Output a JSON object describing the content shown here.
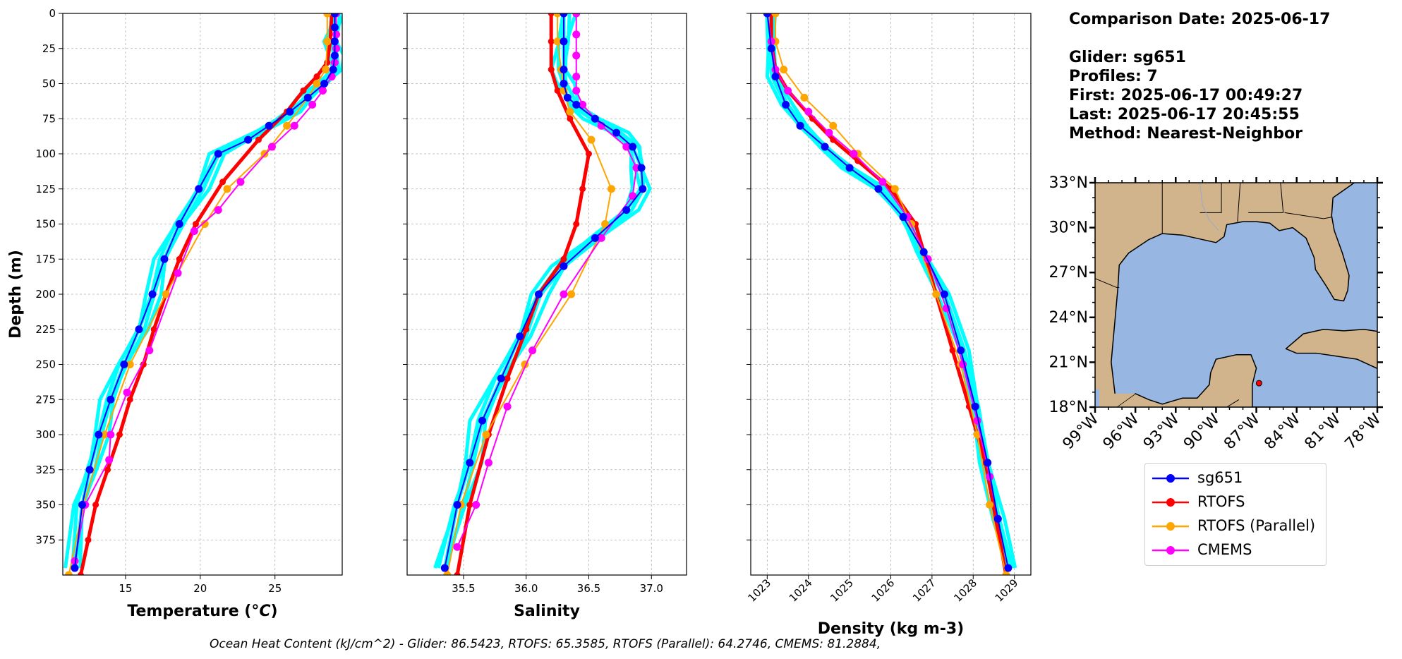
{
  "info": {
    "comparison_date": "Comparison Date: 2025-06-17",
    "glider": "Glider: sg651",
    "profiles": "Profiles: 7",
    "first": "First: 2025-06-17 00:49:27",
    "last": "Last: 2025-06-17 20:45:55",
    "method": "Method: Nearest-Neighbor"
  },
  "footer": "Ocean Heat Content (kJ/cm^2) - Glider: 86.5423,  RTOFS: 65.3585,  RTOFS (Parallel): 64.2746,  CMEMS: 81.2884,",
  "colors": {
    "sg651": "#0000ff",
    "rtofs": "#ff0000",
    "parallel": "#ffa500",
    "cmems": "#ff00ff",
    "raw": "#00ffff",
    "ocean": "#97b6e1",
    "land": "#d2b48c"
  },
  "legend": [
    {
      "name": "sg651",
      "color": "#0000ff"
    },
    {
      "name": "RTOFS",
      "color": "#ff0000"
    },
    {
      "name": "RTOFS (Parallel)",
      "color": "#ffa500"
    },
    {
      "name": "CMEMS",
      "color": "#ff00ff"
    }
  ],
  "chart_data": [
    {
      "type": "line",
      "xlabel": "Temperature (°C)",
      "ylabel": "Depth (m)",
      "xlim": [
        10.8,
        29.5
      ],
      "ylim": [
        400,
        0
      ],
      "xticks": [
        15,
        20,
        25
      ],
      "yticks": [
        0,
        25,
        50,
        75,
        100,
        125,
        150,
        175,
        200,
        225,
        250,
        275,
        300,
        325,
        350,
        375
      ],
      "grid": true,
      "series": [
        {
          "name": "sg651",
          "x": [
            29,
            29,
            29,
            29,
            28.9,
            28.3,
            27.2,
            26,
            24.6,
            23.2,
            21.2,
            19.9,
            18.6,
            17.6,
            16.8,
            15.9,
            14.9,
            14,
            13.2,
            12.6,
            12.1,
            11.6
          ],
          "y": [
            0,
            10,
            20,
            30,
            40,
            50,
            60,
            70,
            80,
            90,
            100,
            125,
            150,
            175,
            200,
            225,
            250,
            275,
            300,
            325,
            350,
            395
          ]
        },
        {
          "name": "RTOFS",
          "x": [
            28.8,
            28.7,
            28.5,
            27.8,
            26.9,
            25.8,
            23.9,
            21.5,
            19.7,
            18.6,
            17.7,
            16.9,
            16.2,
            15.3,
            14.6,
            13.8,
            13,
            12.5,
            12
          ],
          "y": [
            0,
            20,
            35,
            45,
            55,
            70,
            90,
            120,
            150,
            175,
            200,
            225,
            250,
            275,
            300,
            325,
            350,
            375,
            400
          ]
        },
        {
          "name": "RTOFS (Parallel)",
          "x": [
            28.5,
            28.5,
            28.4,
            27.8,
            27.2,
            25.8,
            24.3,
            21.8,
            20.3,
            17.7,
            15.3,
            13.6,
            12.2,
            11.2
          ],
          "y": [
            0,
            20,
            40,
            50,
            60,
            80,
            100,
            125,
            150,
            200,
            250,
            300,
            350,
            400
          ]
        },
        {
          "name": "CMEMS",
          "x": [
            29.1,
            29.1,
            29.1,
            29,
            28.8,
            28.2,
            27.5,
            26.3,
            24.8,
            22.7,
            21.2,
            19.6,
            18.5,
            16.6,
            15.1,
            14,
            13.9,
            12.3,
            11.6
          ],
          "y": [
            0,
            15,
            25,
            35,
            45,
            55,
            65,
            80,
            95,
            120,
            140,
            155,
            185,
            240,
            270,
            300,
            318,
            350,
            390
          ]
        }
      ]
    },
    {
      "type": "line",
      "xlabel": "Salinity",
      "xlim": [
        35.05,
        37.28
      ],
      "ylim": [
        400,
        0
      ],
      "xticks": [
        35.5,
        36.0,
        36.5,
        37.0
      ],
      "grid": true,
      "series": [
        {
          "name": "sg651",
          "x": [
            36.3,
            36.3,
            36.3,
            36.3,
            36.33,
            36.4,
            36.55,
            36.72,
            36.85,
            36.92,
            36.93,
            36.8,
            36.55,
            36.3,
            36.1,
            35.95,
            35.8,
            35.65,
            35.55,
            35.45,
            35.35
          ],
          "y": [
            0,
            20,
            40,
            50,
            60,
            65,
            75,
            85,
            95,
            110,
            125,
            140,
            160,
            180,
            200,
            230,
            260,
            290,
            320,
            350,
            395
          ]
        },
        {
          "name": "RTOFS",
          "x": [
            36.2,
            36.2,
            36.2,
            36.25,
            36.35,
            36.5,
            36.45,
            36.4,
            36.3,
            36.1,
            36.0,
            35.85,
            35.7,
            35.55,
            35.45
          ],
          "y": [
            0,
            20,
            40,
            55,
            75,
            100,
            125,
            150,
            175,
            200,
            225,
            260,
            300,
            350,
            400
          ]
        },
        {
          "name": "RTOFS (Parallel)",
          "x": [
            36.25,
            36.25,
            36.28,
            36.3,
            36.35,
            36.52,
            36.68,
            36.63,
            36.36,
            35.99,
            35.68,
            35.48,
            35.37
          ],
          "y": [
            0,
            20,
            40,
            55,
            70,
            90,
            125,
            150,
            200,
            250,
            300,
            350,
            400
          ]
        },
        {
          "name": "CMEMS",
          "x": [
            36.4,
            36.4,
            36.4,
            36.4,
            36.4,
            36.45,
            36.6,
            36.8,
            36.88,
            36.85,
            36.6,
            36.3,
            36.05,
            35.85,
            35.7,
            35.6,
            35.45
          ],
          "y": [
            0,
            15,
            30,
            45,
            55,
            65,
            80,
            95,
            110,
            130,
            160,
            200,
            240,
            280,
            320,
            350,
            380
          ]
        }
      ]
    },
    {
      "type": "line",
      "xlabel": "Density (kg m-3)",
      "xlim": [
        1022.6,
        1029.4
      ],
      "ylim": [
        400,
        0
      ],
      "xticks": [
        1023,
        1024,
        1025,
        1026,
        1027,
        1028,
        1029
      ],
      "grid": true,
      "series": [
        {
          "name": "sg651",
          "x": [
            1023.0,
            1023.1,
            1023.2,
            1023.45,
            1023.8,
            1024.4,
            1025.0,
            1025.7,
            1026.3,
            1026.8,
            1027.3,
            1027.7,
            1028.05,
            1028.35,
            1028.6,
            1028.85
          ],
          "y": [
            0,
            25,
            45,
            65,
            80,
            95,
            110,
            125,
            145,
            170,
            200,
            240,
            280,
            320,
            360,
            395
          ]
        },
        {
          "name": "RTOFS",
          "x": [
            1023.1,
            1023.1,
            1023.2,
            1023.5,
            1024.1,
            1024.6,
            1025.2,
            1026.0,
            1026.6,
            1027.1,
            1027.5,
            1027.9,
            1028.3,
            1028.8
          ],
          "y": [
            0,
            20,
            40,
            55,
            75,
            90,
            105,
            125,
            150,
            200,
            240,
            280,
            320,
            400
          ]
        },
        {
          "name": "RTOFS (Parallel)",
          "x": [
            1023.2,
            1023.2,
            1023.4,
            1023.9,
            1024.6,
            1025.2,
            1026.1,
            1026.5,
            1027.1,
            1027.7,
            1028.1,
            1028.4,
            1028.8
          ],
          "y": [
            0,
            20,
            40,
            60,
            80,
            100,
            125,
            150,
            200,
            250,
            300,
            350,
            400
          ]
        },
        {
          "name": "CMEMS",
          "x": [
            1023.0,
            1023.1,
            1023.2,
            1023.5,
            1024.0,
            1024.5,
            1025.1,
            1025.8,
            1026.4,
            1026.9,
            1027.35,
            1027.75,
            1028.1,
            1028.4,
            1028.6
          ],
          "y": [
            0,
            20,
            40,
            55,
            70,
            85,
            100,
            120,
            145,
            175,
            210,
            250,
            290,
            330,
            360
          ]
        }
      ]
    },
    {
      "type": "map",
      "lon_range": [
        -99,
        -78
      ],
      "lat_range": [
        18,
        33
      ],
      "lon_ticks": [
        "99°W",
        "96°W",
        "93°W",
        "90°W",
        "87°W",
        "84°W",
        "81°W",
        "78°W"
      ],
      "lat_ticks": [
        "18°N",
        "21°N",
        "24°N",
        "27°N",
        "30°N",
        "33°N"
      ],
      "glider_position": {
        "lon": -86.8,
        "lat": 19.6
      }
    }
  ]
}
